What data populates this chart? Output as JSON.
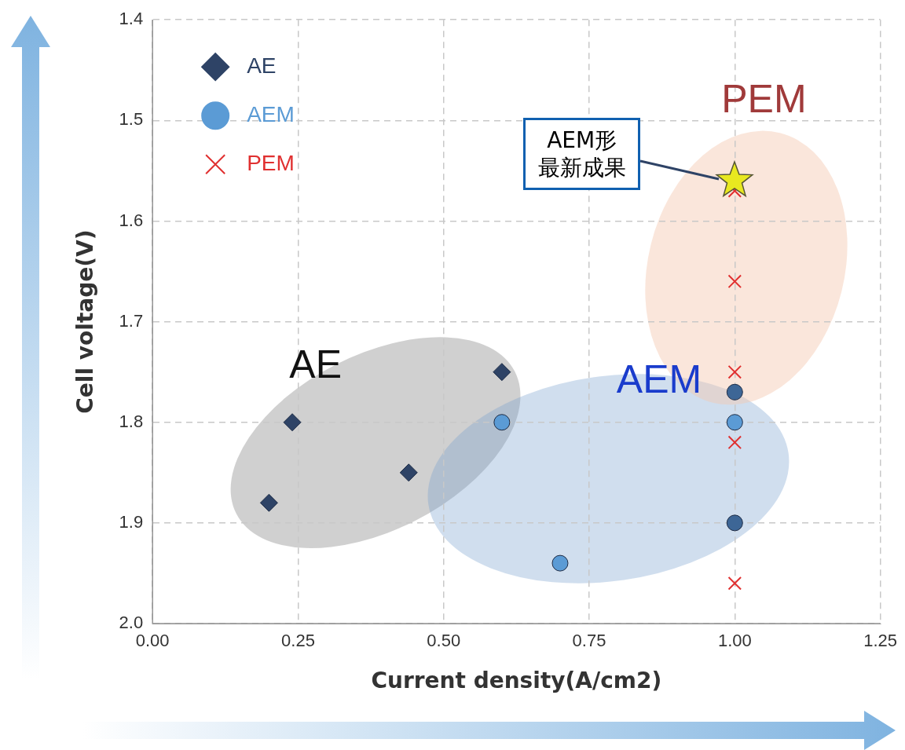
{
  "chart_data": {
    "type": "scatter",
    "xlabel": "Current density(A/cm2)",
    "ylabel": "Cell voltage(V)",
    "xlim": [
      0,
      1.25
    ],
    "xticks": [
      {
        "value": 0,
        "label": "0.00"
      },
      {
        "value": 0.25,
        "label": "0.25"
      },
      {
        "value": 0.5,
        "label": "0.50"
      },
      {
        "value": 0.75,
        "label": "0.75"
      },
      {
        "value": 1,
        "label": "1.00"
      },
      {
        "value": 1.25,
        "label": "1.25"
      }
    ],
    "ylim": [
      2.0,
      1.4
    ],
    "yticks": [
      1.4,
      1.5,
      1.6,
      1.7,
      1.8,
      1.9,
      {
        "value": 2,
        "label": "2.0"
      }
    ],
    "grid": true,
    "legend": "top left",
    "series": [
      {
        "name": "AE",
        "color": "#2e4366",
        "marker": "diamond",
        "x": [
          0.2,
          0.24,
          0.44,
          0.6
        ],
        "values": [
          1.88,
          1.8,
          1.85,
          1.75
        ]
      },
      {
        "name": "AEM",
        "color": "#5b9bd5",
        "colors": [
          "#5b9bd5",
          "#5b9bd5",
          "#3d6696",
          "#5b9bd5",
          "#3d6696"
        ],
        "marker": "circle",
        "x": [
          0.6,
          0.7,
          1.0,
          1.0,
          1.0
        ],
        "values": [
          1.8,
          1.94,
          1.77,
          1.8,
          1.9
        ]
      },
      {
        "name": "PEM",
        "color": "#e03030",
        "marker": "cross",
        "x": [
          1.0,
          1.0,
          1.0,
          1.0,
          1.0
        ],
        "values": [
          1.57,
          1.66,
          1.75,
          1.82,
          1.96
        ]
      }
    ],
    "annotations": [
      "AE",
      "AEM",
      "PEM",
      "AEM形最新成果"
    ]
  }
}
